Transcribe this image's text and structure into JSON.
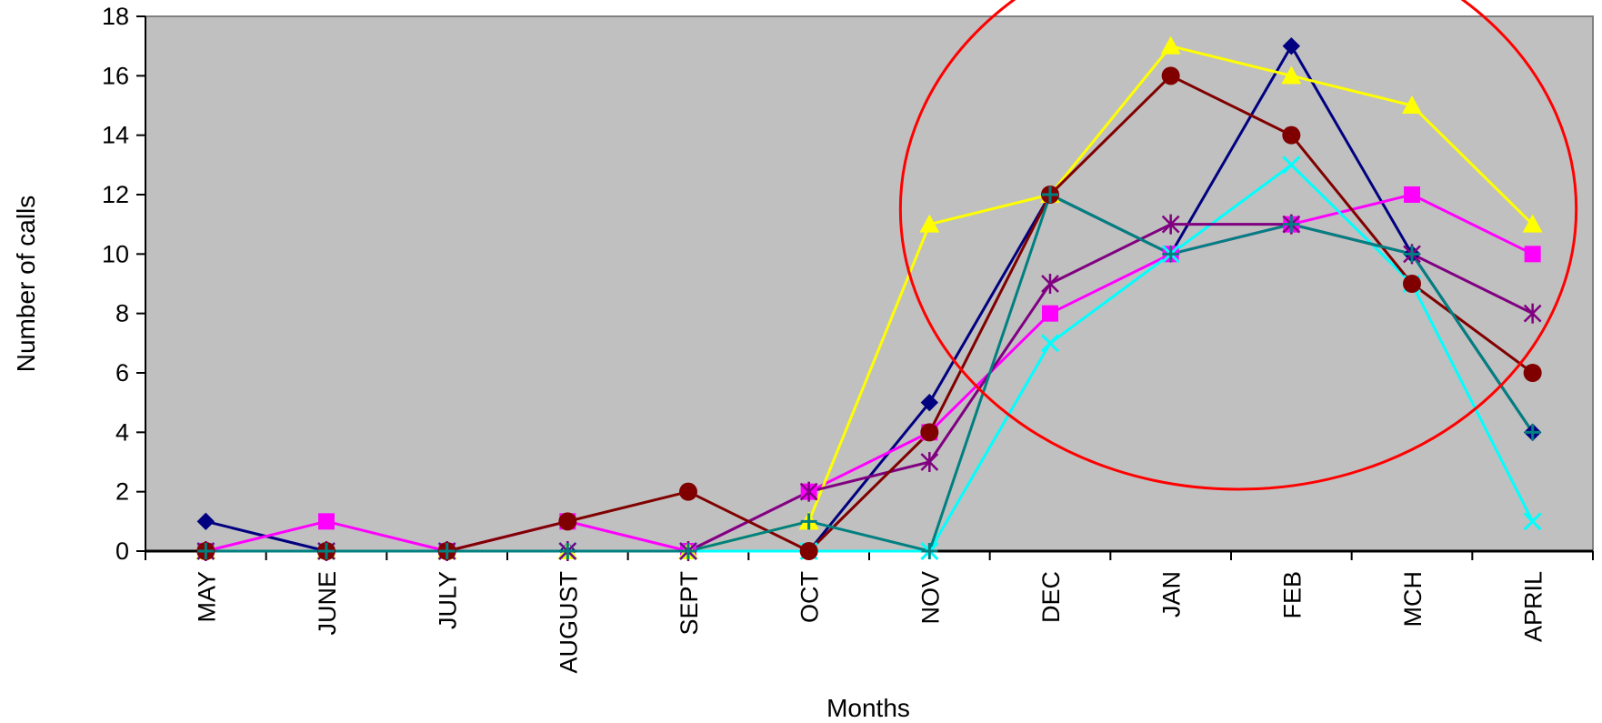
{
  "chart_data": {
    "type": "line",
    "title": "",
    "xlabel": "Months",
    "ylabel": "Number of calls",
    "categories": [
      "MAY",
      "JUNE",
      "JULY",
      "AUGUST",
      "SEPT",
      "OCT",
      "NOV",
      "DEC",
      "JAN",
      "FEB",
      "MCH",
      "APRIL"
    ],
    "ylim": [
      0,
      18
    ],
    "yticks": [
      0,
      2,
      4,
      6,
      8,
      10,
      12,
      14,
      16,
      18
    ],
    "grid": false,
    "legend": "none",
    "plot_background": "#C0C0C0",
    "annotation": {
      "shape": "ellipse",
      "color": "#FF0000",
      "around": [
        "NOV",
        "DEC",
        "JAN",
        "FEB",
        "MCH",
        "APRIL"
      ]
    },
    "series": [
      {
        "color": "#000080",
        "marker": "diamond",
        "values": [
          1,
          0,
          0,
          0,
          0,
          0,
          5,
          12,
          10,
          17,
          10,
          4
        ]
      },
      {
        "color": "#FF00FF",
        "marker": "square",
        "values": [
          0,
          1,
          0,
          1,
          0,
          2,
          4,
          8,
          10,
          11,
          12,
          10
        ]
      },
      {
        "color": "#FFFF00",
        "marker": "triangle",
        "values": [
          0,
          0,
          0,
          0,
          0,
          1,
          11,
          12,
          17,
          16,
          15,
          11
        ]
      },
      {
        "color": "#00FFFF",
        "marker": "x",
        "values": [
          0,
          0,
          0,
          0,
          0,
          0,
          0,
          7,
          10,
          13,
          9,
          1
        ]
      },
      {
        "color": "#800080",
        "marker": "star",
        "values": [
          0,
          0,
          0,
          0,
          0,
          2,
          3,
          9,
          11,
          11,
          10,
          8
        ]
      },
      {
        "color": "#800000",
        "marker": "circle",
        "values": [
          0,
          0,
          0,
          1,
          2,
          0,
          4,
          12,
          16,
          14,
          9,
          6
        ]
      },
      {
        "color": "#008080",
        "marker": "plus",
        "values": [
          0,
          0,
          0,
          0,
          0,
          1,
          0,
          12,
          10,
          11,
          10,
          4
        ]
      }
    ]
  }
}
